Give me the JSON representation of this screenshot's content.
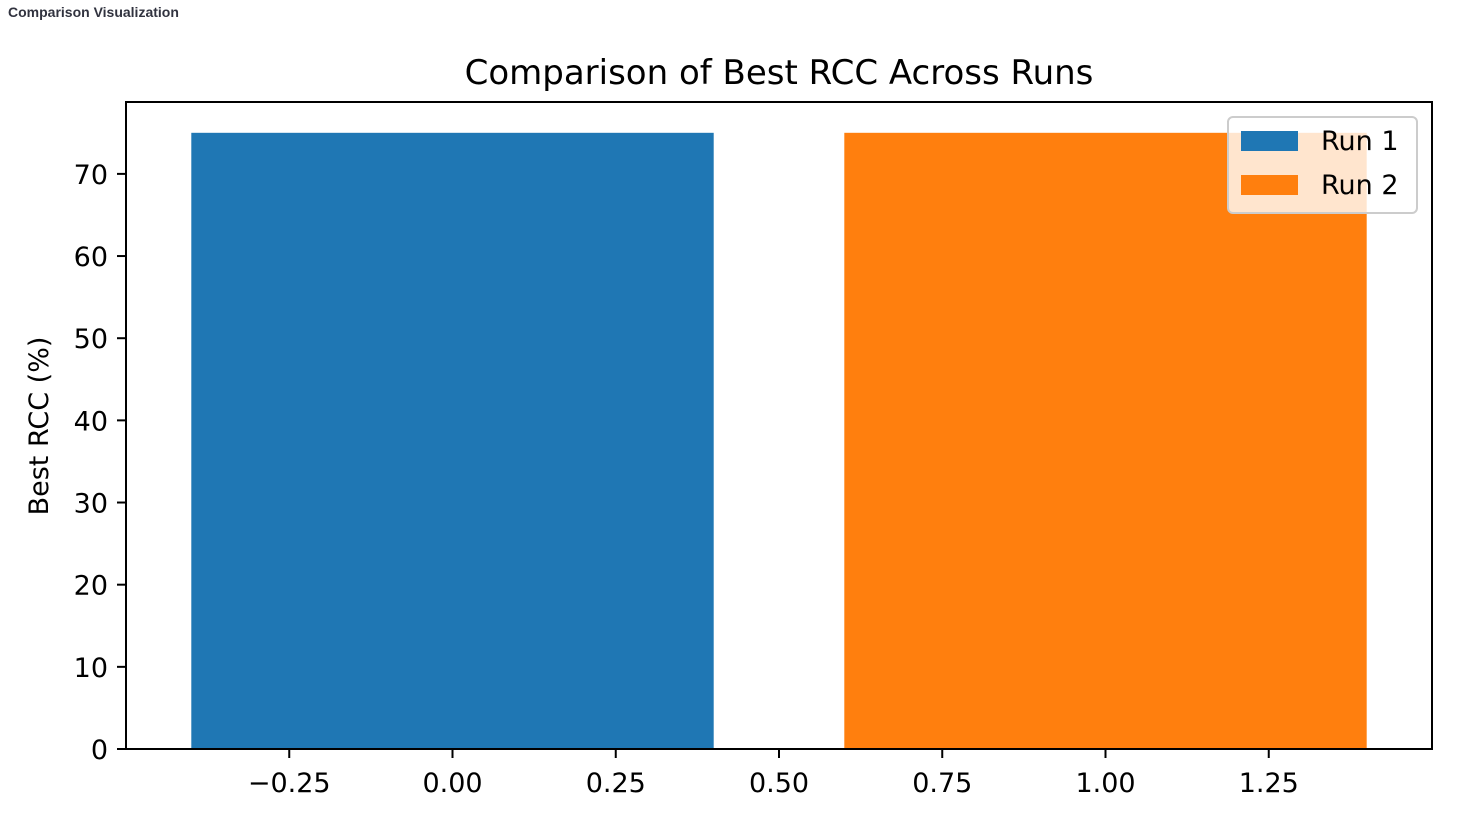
{
  "header": {
    "title": "Comparison Visualization"
  },
  "chart_data": {
    "type": "bar",
    "title": "Comparison of Best RCC Across Runs",
    "xlabel": "",
    "ylabel": "Best RCC (%)",
    "xlim": [
      -0.5,
      1.5
    ],
    "ylim": [
      0,
      78.75
    ],
    "x_ticks": [
      -0.25,
      0.0,
      0.25,
      0.5,
      0.75,
      1.0,
      1.25
    ],
    "x_tick_labels": [
      "−0.25",
      "0.00",
      "0.25",
      "0.50",
      "0.75",
      "1.00",
      "1.25"
    ],
    "y_ticks": [
      0,
      10,
      20,
      30,
      40,
      50,
      60,
      70
    ],
    "y_tick_labels": [
      "0",
      "10",
      "20",
      "30",
      "40",
      "50",
      "60",
      "70"
    ],
    "bar_width": 0.8,
    "series": [
      {
        "name": "Run 1",
        "x": 0,
        "value": 75,
        "color": "#1f77b4"
      },
      {
        "name": "Run 2",
        "x": 1,
        "value": 75,
        "color": "#ff7f0e"
      }
    ],
    "legend": {
      "position": "top-right",
      "entries": [
        "Run 1",
        "Run 2"
      ]
    },
    "grid": false
  }
}
